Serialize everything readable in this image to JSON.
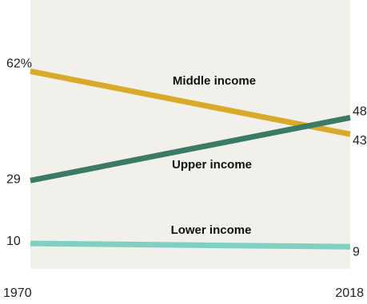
{
  "chart_data": {
    "type": "line",
    "x": [
      1970,
      2018
    ],
    "x_tick_labels": [
      "1970",
      "2018"
    ],
    "series": [
      {
        "name": "Middle income",
        "values": [
          62,
          43
        ],
        "color": "#d9a92b",
        "start_label": "62%",
        "end_label": "43"
      },
      {
        "name": "Upper income",
        "values": [
          29,
          48
        ],
        "color": "#3b7a66",
        "start_label": "29",
        "end_label": "48"
      },
      {
        "name": "Lower income",
        "values": [
          10,
          9
        ],
        "color": "#7fcfc2",
        "start_label": "10",
        "end_label": "9"
      }
    ],
    "ylim": [
      0,
      70
    ],
    "grid": false,
    "plot_background": "#f1f0ea"
  }
}
